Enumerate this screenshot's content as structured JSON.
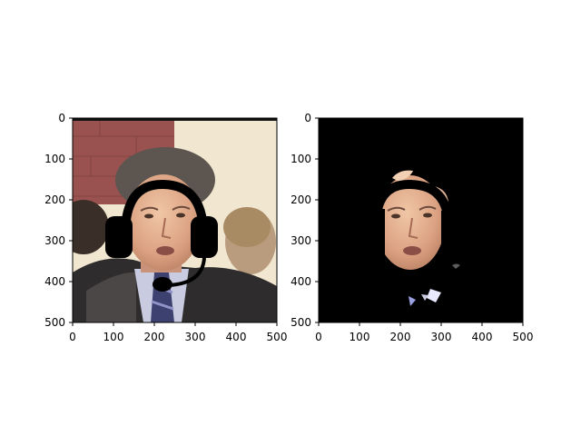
{
  "figure": {
    "background": "#ffffff",
    "axes_color": "#000000"
  },
  "panels": [
    {
      "id": "left",
      "kind": "photo-with-headset-overlay",
      "xlim": [
        0,
        500
      ],
      "ylim": [
        500,
        0
      ],
      "xticks": [
        "0",
        "100",
        "200",
        "300",
        "400",
        "500"
      ],
      "yticks": [
        "0",
        "100",
        "200",
        "300",
        "400",
        "500"
      ]
    },
    {
      "id": "right",
      "kind": "segmentation-mask",
      "xlim": [
        0,
        500
      ],
      "ylim": [
        500,
        0
      ],
      "xticks": [
        "0",
        "100",
        "200",
        "300",
        "400",
        "500"
      ],
      "yticks": [
        "0",
        "100",
        "200",
        "300",
        "400",
        "500"
      ]
    }
  ],
  "icons": [
    "headset-icon"
  ]
}
